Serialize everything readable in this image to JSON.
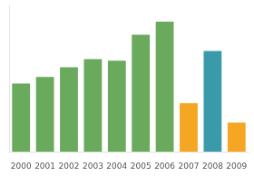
{
  "chart_data": {
    "type": "bar",
    "categories": [
      "2000",
      "2001",
      "2002",
      "2003",
      "2004",
      "2005",
      "2006",
      "2007",
      "2008",
      "2009"
    ],
    "values": [
      42,
      46,
      52,
      57,
      56,
      72,
      80,
      30,
      62,
      18
    ],
    "colors": [
      "#6aaa5c",
      "#6aaa5c",
      "#6aaa5c",
      "#6aaa5c",
      "#6aaa5c",
      "#6aaa5c",
      "#6aaa5c",
      "#f5a623",
      "#3a9aaa",
      "#f5a623"
    ],
    "ylim": [
      0,
      90
    ],
    "yticks": [],
    "grid": false,
    "tick_labels": "x"
  }
}
